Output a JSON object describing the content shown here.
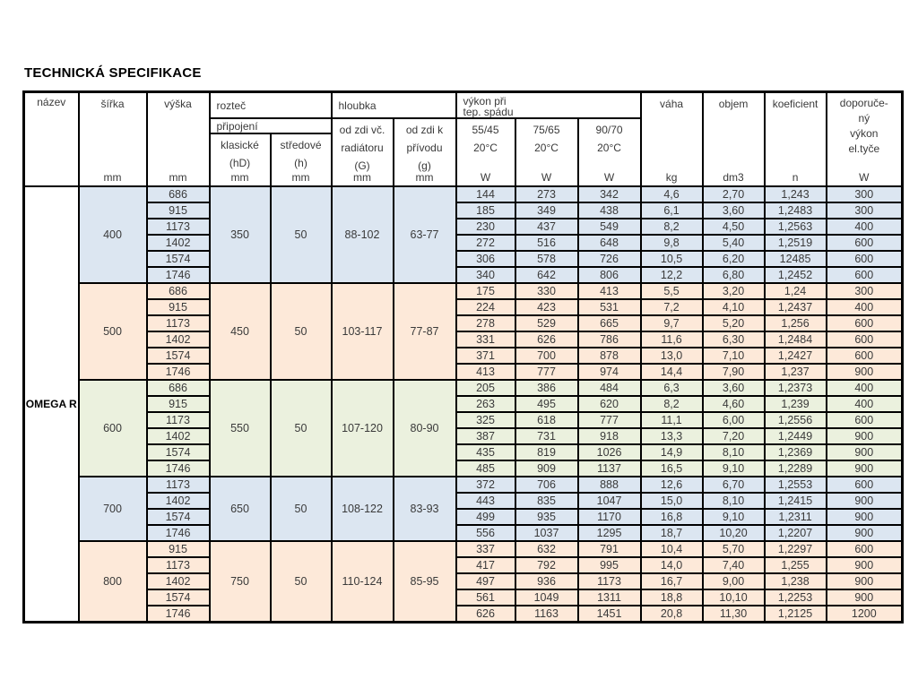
{
  "title": "TECHNICKÁ SPECIFIKACE",
  "product": "OMEGA R",
  "colors": {
    "blue": "#dce6f1",
    "peach": "#fde9d9",
    "green": "#ebf1de",
    "white": "#ffffff"
  },
  "header": {
    "nazev": "název",
    "sirka": "šířka",
    "vyska": "výška",
    "roztec": "rozteč",
    "pripojeni": "připojení",
    "klasicke": [
      "klasické",
      "(hD)"
    ],
    "stredove": [
      "středové",
      "(h)"
    ],
    "hloubka": "hloubka",
    "od_zdi_radiator": [
      "od zdi vč.",
      "radiátoru",
      "(G)"
    ],
    "od_zdi_privod": [
      "od zdi k",
      "přívodu",
      "(g)"
    ],
    "vykon_spad": [
      "výkon při",
      "tep. spádu"
    ],
    "temp_55": [
      "55/45",
      "20°C"
    ],
    "temp_75": [
      "75/65",
      "20°C"
    ],
    "temp_90": [
      "90/70",
      "20°C"
    ],
    "vaha": "váha",
    "objem": "objem",
    "koeficient": "koeficient",
    "doporuceny": [
      "doporuče-",
      "ný",
      "výkon",
      "el.tyče"
    ]
  },
  "units": {
    "sirka": "mm",
    "vyska": "mm",
    "klasicke": "mm",
    "stredove": "mm",
    "od_zdi_radiator": "mm",
    "od_zdi_privod": "mm",
    "temp_55": "W",
    "temp_75": "W",
    "temp_90": "W",
    "vaha": "kg",
    "objem": "dm3",
    "koeficient": "n",
    "doporuceny": "W"
  },
  "groups": [
    {
      "width": "400",
      "color": "blue",
      "klasicke": "350",
      "stredove": "50",
      "depth_g": "88-102",
      "depth_small": "63-77",
      "rows": [
        {
          "h": "686",
          "w55": "144",
          "w75": "273",
          "w90": "342",
          "kg": "4,6",
          "dm3": "2,70",
          "n": "1,243",
          "el": "300"
        },
        {
          "h": "915",
          "w55": "185",
          "w75": "349",
          "w90": "438",
          "kg": "6,1",
          "dm3": "3,60",
          "n": "1,2483",
          "el": "300"
        },
        {
          "h": "1173",
          "w55": "230",
          "w75": "437",
          "w90": "549",
          "kg": "8,2",
          "dm3": "4,50",
          "n": "1,2563",
          "el": "400"
        },
        {
          "h": "1402",
          "w55": "272",
          "w75": "516",
          "w90": "648",
          "kg": "9,8",
          "dm3": "5,40",
          "n": "1,2519",
          "el": "600"
        },
        {
          "h": "1574",
          "w55": "306",
          "w75": "578",
          "w90": "726",
          "kg": "10,5",
          "dm3": "6,20",
          "n": "12485",
          "el": "600"
        },
        {
          "h": "1746",
          "w55": "340",
          "w75": "642",
          "w90": "806",
          "kg": "12,2",
          "dm3": "6,80",
          "n": "1,2452",
          "el": "600"
        }
      ]
    },
    {
      "width": "500",
      "color": "peach",
      "klasicke": "450",
      "stredove": "50",
      "depth_g": "103-117",
      "depth_small": "77-87",
      "rows": [
        {
          "h": "686",
          "w55": "175",
          "w75": "330",
          "w90": "413",
          "kg": "5,5",
          "dm3": "3,20",
          "n": "1,24",
          "el": "300"
        },
        {
          "h": "915",
          "w55": "224",
          "w75": "423",
          "w90": "531",
          "kg": "7,2",
          "dm3": "4,10",
          "n": "1,2437",
          "el": "400"
        },
        {
          "h": "1173",
          "w55": "278",
          "w75": "529",
          "w90": "665",
          "kg": "9,7",
          "dm3": "5,20",
          "n": "1,256",
          "el": "600"
        },
        {
          "h": "1402",
          "w55": "331",
          "w75": "626",
          "w90": "786",
          "kg": "11,6",
          "dm3": "6,30",
          "n": "1,2484",
          "el": "600"
        },
        {
          "h": "1574",
          "w55": "371",
          "w75": "700",
          "w90": "878",
          "kg": "13,0",
          "dm3": "7,10",
          "n": "1,2427",
          "el": "600"
        },
        {
          "h": "1746",
          "w55": "413",
          "w75": "777",
          "w90": "974",
          "kg": "14,4",
          "dm3": "7,90",
          "n": "1,237",
          "el": "900"
        }
      ]
    },
    {
      "width": "600",
      "color": "green",
      "klasicke": "550",
      "stredove": "50",
      "depth_g": "107-120",
      "depth_small": "80-90",
      "rows": [
        {
          "h": "686",
          "w55": "205",
          "w75": "386",
          "w90": "484",
          "kg": "6,3",
          "dm3": "3,60",
          "n": "1,2373",
          "el": "400"
        },
        {
          "h": "915",
          "w55": "263",
          "w75": "495",
          "w90": "620",
          "kg": "8,2",
          "dm3": "4,60",
          "n": "1,239",
          "el": "400"
        },
        {
          "h": "1173",
          "w55": "325",
          "w75": "618",
          "w90": "777",
          "kg": "11,1",
          "dm3": "6,00",
          "n": "1,2556",
          "el": "600"
        },
        {
          "h": "1402",
          "w55": "387",
          "w75": "731",
          "w90": "918",
          "kg": "13,3",
          "dm3": "7,20",
          "n": "1,2449",
          "el": "900"
        },
        {
          "h": "1574",
          "w55": "435",
          "w75": "819",
          "w90": "1026",
          "kg": "14,9",
          "dm3": "8,10",
          "n": "1,2369",
          "el": "900"
        },
        {
          "h": "1746",
          "w55": "485",
          "w75": "909",
          "w90": "1137",
          "kg": "16,5",
          "dm3": "9,10",
          "n": "1,2289",
          "el": "900"
        }
      ]
    },
    {
      "width": "700",
      "color": "blue",
      "klasicke": "650",
      "stredove": "50",
      "depth_g": "108-122",
      "depth_small": "83-93",
      "rows": [
        {
          "h": "1173",
          "w55": "372",
          "w75": "706",
          "w90": "888",
          "kg": "12,6",
          "dm3": "6,70",
          "n": "1,2553",
          "el": "600"
        },
        {
          "h": "1402",
          "w55": "443",
          "w75": "835",
          "w90": "1047",
          "kg": "15,0",
          "dm3": "8,10",
          "n": "1,2415",
          "el": "900"
        },
        {
          "h": "1574",
          "w55": "499",
          "w75": "935",
          "w90": "1170",
          "kg": "16,8",
          "dm3": "9,10",
          "n": "1,2311",
          "el": "900"
        },
        {
          "h": "1746",
          "w55": "556",
          "w75": "1037",
          "w90": "1295",
          "kg": "18,7",
          "dm3": "10,20",
          "n": "1,2207",
          "el": "900"
        }
      ]
    },
    {
      "width": "800",
      "color": "peach",
      "klasicke": "750",
      "stredove": "50",
      "depth_g": "110-124",
      "depth_small": "85-95",
      "rows": [
        {
          "h": "915",
          "w55": "337",
          "w75": "632",
          "w90": "791",
          "kg": "10,4",
          "dm3": "5,70",
          "n": "1,2297",
          "el": "600"
        },
        {
          "h": "1173",
          "w55": "417",
          "w75": "792",
          "w90": "995",
          "kg": "14,0",
          "dm3": "7,40",
          "n": "1,255",
          "el": "900"
        },
        {
          "h": "1402",
          "w55": "497",
          "w75": "936",
          "w90": "1173",
          "kg": "16,7",
          "dm3": "9,00",
          "n": "1,238",
          "el": "900"
        },
        {
          "h": "1574",
          "w55": "561",
          "w75": "1049",
          "w90": "1311",
          "kg": "18,8",
          "dm3": "10,10",
          "n": "1,2253",
          "el": "900"
        },
        {
          "h": "1746",
          "w55": "626",
          "w75": "1163",
          "w90": "1451",
          "kg": "20,8",
          "dm3": "11,30",
          "n": "1,2125",
          "el": "1200"
        }
      ]
    }
  ]
}
